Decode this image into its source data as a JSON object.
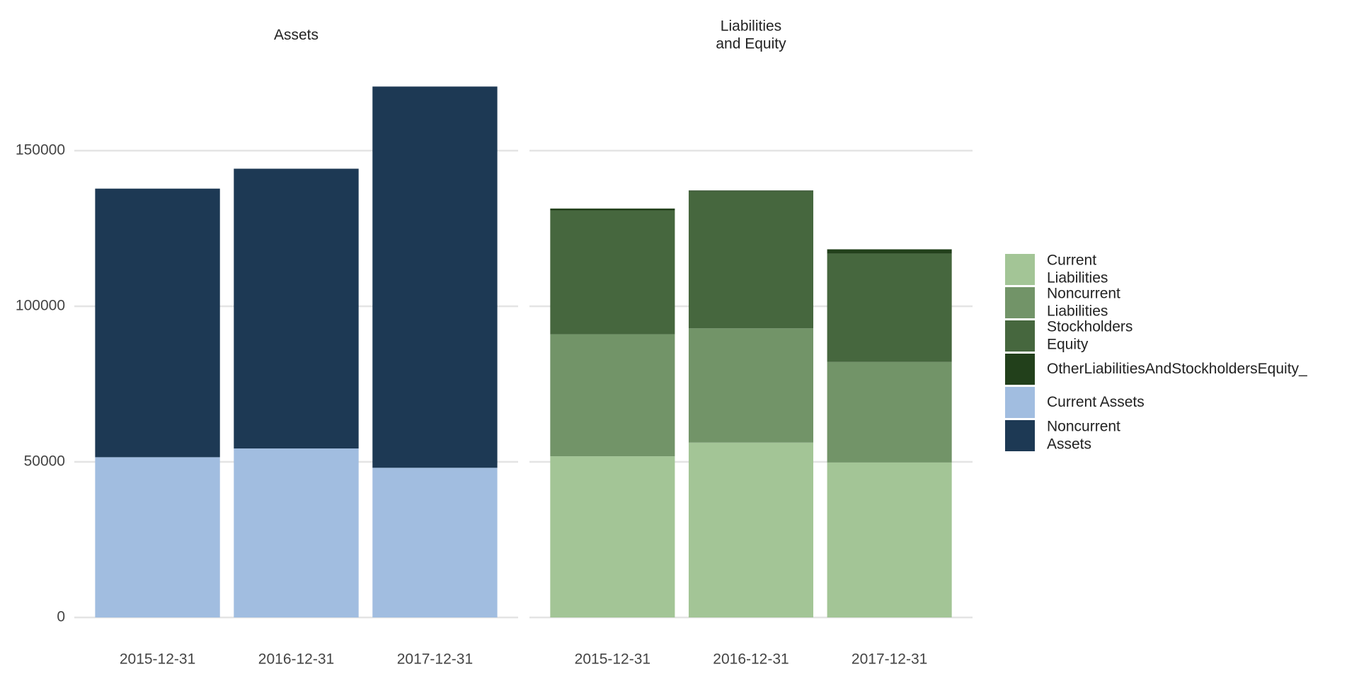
{
  "chart_data": {
    "type": "bar",
    "stacked": true,
    "ylim": [
      0,
      175000
    ],
    "yticks": [
      0,
      50000,
      100000,
      150000
    ],
    "grid": true,
    "facets": [
      {
        "title": [
          "Assets"
        ],
        "categories": [
          "2015-12-31",
          "2016-12-31",
          "2017-12-31"
        ],
        "series": [
          {
            "name": [
              "Current Assets"
            ],
            "color": "#a1bde0",
            "values": [
              51500,
              54300,
              48100
            ]
          },
          {
            "name": [
              "Noncurrent",
              "Assets"
            ],
            "color": "#1d3954",
            "values": [
              86300,
              89900,
              122500
            ]
          }
        ]
      },
      {
        "title": [
          "Liabilities",
          "and Equity"
        ],
        "categories": [
          "2015-12-31",
          "2016-12-31",
          "2017-12-31"
        ],
        "series": [
          {
            "name": [
              "Current",
              "Liabilities"
            ],
            "color": "#a3c596",
            "values": [
              51800,
              56200,
              49800
            ]
          },
          {
            "name": [
              "Noncurrent",
              "Liabilities"
            ],
            "color": "#729468",
            "values": [
              39200,
              36700,
              32300
            ]
          },
          {
            "name": [
              "Stockholders",
              "Equity"
            ],
            "color": "#46673e",
            "values": [
              39800,
              44000,
              34800
            ]
          },
          {
            "name": [
              "OtherLiabilitiesAndStockholdersEquity_"
            ],
            "color": "#22401b",
            "values": [
              600,
              300,
              1400
            ]
          }
        ]
      }
    ]
  }
}
